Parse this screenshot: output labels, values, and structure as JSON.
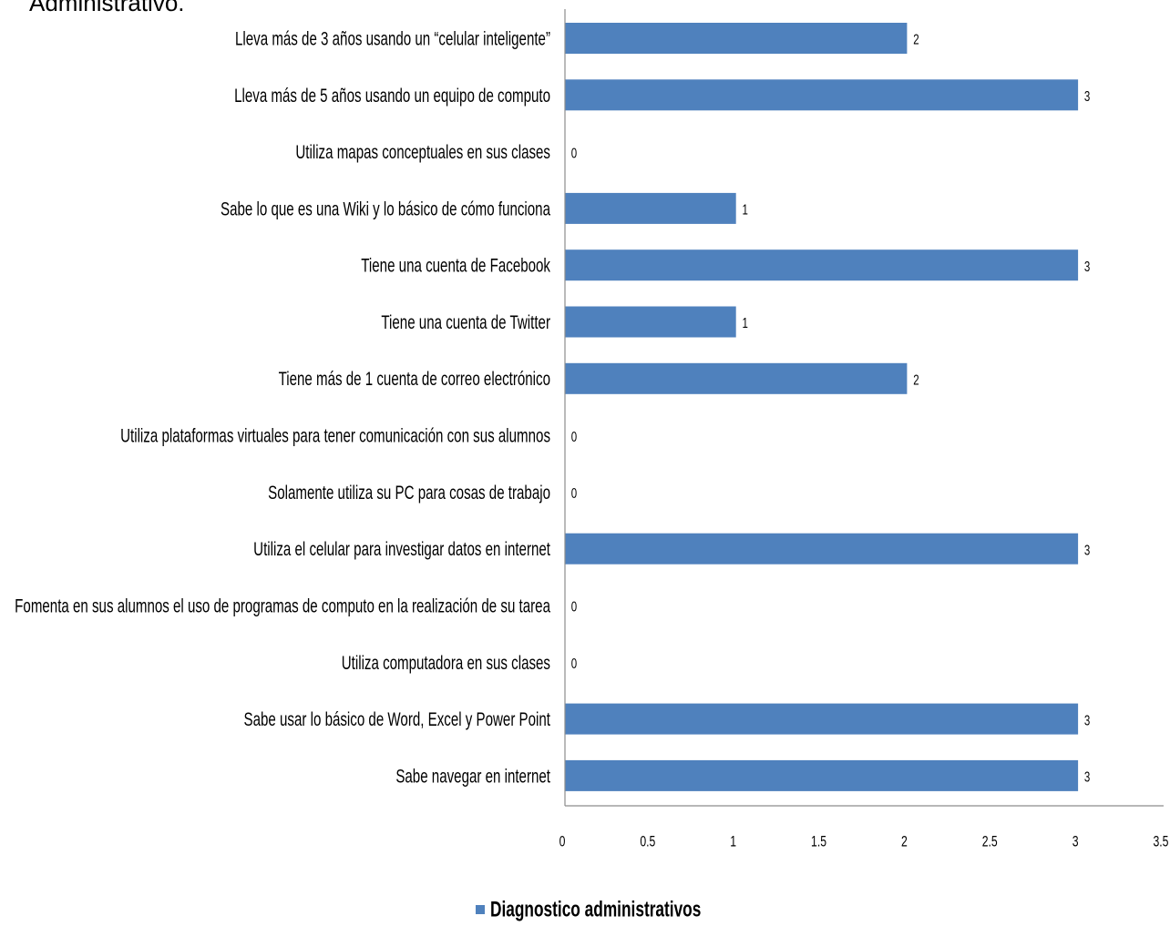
{
  "caption": "Administrativo.",
  "colors": {
    "bar": "#4f81bd",
    "axis": "#8c8c8c",
    "text": "#000000"
  },
  "chart_data": {
    "type": "bar",
    "orientation": "horizontal",
    "title": "",
    "xlabel": "",
    "ylabel": "",
    "xlim": [
      0,
      3.5
    ],
    "x_ticks": [
      "0",
      "0.5",
      "1",
      "1.5",
      "2",
      "2.5",
      "3",
      "3.5"
    ],
    "grid": false,
    "legend_position": "bottom",
    "categories": [
      "Lleva más de 3 años usando un “celular inteligente”",
      "Lleva más de 5 años usando un equipo de computo",
      "Utiliza mapas  conceptuales en sus clases",
      "Sabe lo que es una Wiki y lo básico de cómo funciona",
      "Tiene una cuenta de Facebook",
      "Tiene una cuenta de Twitter",
      "Tiene más  de 1 cuenta de correo electrónico",
      "Utiliza plataformas  virtuales para tener comunicación con sus alumnos",
      "Solamente utiliza su PC para cosas de trabajo",
      "Utiliza el celular para investigar datos en internet",
      "Fomenta en sus alumnos el uso de programas de computo en la realización de su tarea",
      "Utiliza computadora  en sus clases",
      "Sabe usar lo básico de Word, Excel y Power Point",
      "Sabe navegar en internet"
    ],
    "series": [
      {
        "name": "Diagnostico administrativos",
        "values": [
          2,
          3,
          0,
          1,
          3,
          1,
          2,
          0,
          0,
          3,
          0,
          0,
          3,
          3
        ],
        "value_labels": [
          "2",
          "3",
          "0",
          "1",
          "3",
          "1",
          "2",
          "0",
          "0",
          "3",
          "0",
          "0",
          "3",
          "3"
        ]
      }
    ]
  }
}
